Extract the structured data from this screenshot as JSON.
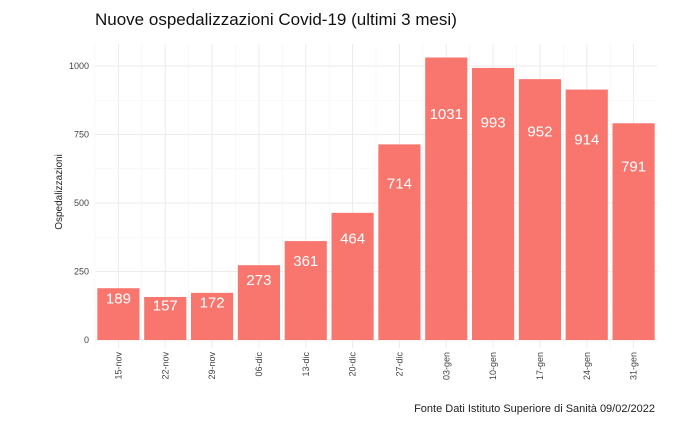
{
  "chart_data": {
    "type": "bar",
    "title": "Nuove ospedalizzazioni Covid-19 (ultimi 3 mesi)",
    "xlabel": "",
    "ylabel": "Ospedalizzazioni",
    "caption": "Fonte Dati Istituto Superiore di Sanità 09/02/2022",
    "categories": [
      "15-nov",
      "22-nov",
      "29-nov",
      "06-dic",
      "13-dic",
      "20-dic",
      "27-dic",
      "03-gen",
      "10-gen",
      "17-gen",
      "24-gen",
      "31-gen"
    ],
    "values": [
      189,
      157,
      172,
      273,
      361,
      464,
      714,
      1031,
      993,
      952,
      914,
      791
    ],
    "yticks": [
      0,
      250,
      500,
      750,
      1000
    ],
    "ylim": [
      0,
      1060
    ],
    "grid": true,
    "bar_color": "#F8766D",
    "label_color": "#FFFFFF"
  }
}
